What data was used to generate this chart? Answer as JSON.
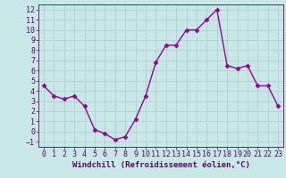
{
  "x": [
    0,
    1,
    2,
    3,
    4,
    5,
    6,
    7,
    8,
    9,
    10,
    11,
    12,
    13,
    14,
    15,
    16,
    17,
    18,
    19,
    20,
    21,
    22,
    23
  ],
  "y": [
    4.5,
    3.5,
    3.2,
    3.5,
    2.5,
    0.2,
    -0.2,
    -0.8,
    -0.5,
    1.2,
    3.5,
    6.8,
    8.5,
    8.5,
    10.0,
    10.0,
    11.0,
    12.0,
    6.5,
    6.2,
    6.5,
    4.5,
    4.5,
    2.5
  ],
  "line_color": "#990099",
  "marker": "D",
  "marker_size": 2.5,
  "bg_color": "#c8e8e8",
  "grid_color": "#b0d0d0",
  "xlabel": "Windchill (Refroidissement éolien,°C)",
  "ylim": [
    -1.5,
    12.5
  ],
  "xlim": [
    -0.5,
    23.5
  ],
  "yticks": [
    -1,
    0,
    1,
    2,
    3,
    4,
    5,
    6,
    7,
    8,
    9,
    10,
    11,
    12
  ],
  "xticks": [
    0,
    1,
    2,
    3,
    4,
    5,
    6,
    7,
    8,
    9,
    10,
    11,
    12,
    13,
    14,
    15,
    16,
    17,
    18,
    19,
    20,
    21,
    22,
    23
  ],
  "tick_color": "#660066",
  "label_color": "#660066",
  "xlabel_fontsize": 6.5,
  "tick_fontsize": 6,
  "line_width": 1.0
}
